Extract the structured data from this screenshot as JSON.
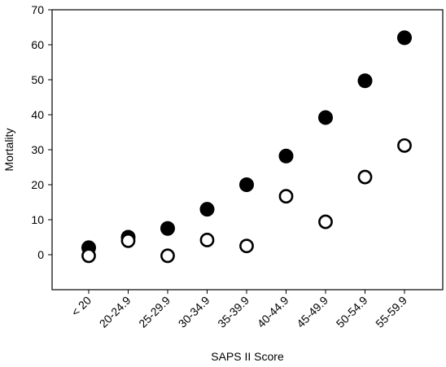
{
  "chart_data": {
    "type": "scatter",
    "title": "",
    "xlabel": "SAPS II Score",
    "ylabel": "Mortality",
    "categories": [
      "< 20",
      "20-24.9",
      "25-29.9",
      "30-34.9",
      "35-39.9",
      "40-44.9",
      "45-49.9",
      "50-54.9",
      "55-59.9"
    ],
    "ylim": [
      -10,
      70
    ],
    "yticks": [
      0,
      10,
      20,
      30,
      40,
      50,
      60,
      70
    ],
    "grid": false,
    "legend": "none",
    "series": [
      {
        "marker": "filled-circle",
        "color": "#000000",
        "values": [
          2,
          5,
          7.5,
          13,
          20,
          28.2,
          39.2,
          49.7,
          62
        ]
      },
      {
        "marker": "open-circle",
        "color": "#000000",
        "values": [
          -0.3,
          4,
          -0.3,
          4.2,
          2.5,
          16.7,
          9.4,
          22.2,
          31.2
        ]
      }
    ]
  }
}
